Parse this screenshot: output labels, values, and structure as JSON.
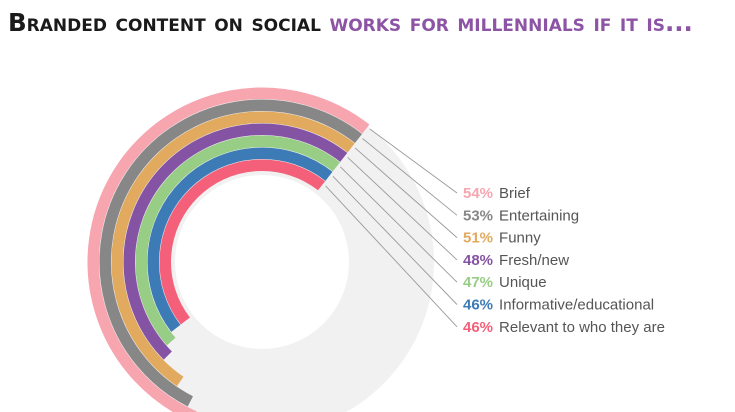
{
  "title": {
    "part1": "Branded content on social",
    "part2": "works for millennials if it is..."
  },
  "colors": {
    "title_dark": "#1a1a1a",
    "title_accent": "#8d53a5",
    "track": "#f1f1f1",
    "leader": "#9a9a9a"
  },
  "chart_data": {
    "type": "radial-bar",
    "title": "Branded content on social works for millennials if it is...",
    "unit": "%",
    "max": 100,
    "series": [
      {
        "label": "Brief",
        "value": 54,
        "display": "54%",
        "color": "#f7a6b0"
      },
      {
        "label": "Entertaining",
        "value": 53,
        "display": "53%",
        "color": "#878787"
      },
      {
        "label": "Funny",
        "value": 51,
        "display": "51%",
        "color": "#e2aa5e"
      },
      {
        "label": "Fresh/new",
        "value": 48,
        "display": "48%",
        "color": "#8553a4"
      },
      {
        "label": "Unique",
        "value": 47,
        "display": "47%",
        "color": "#97cd85"
      },
      {
        "label": "Informative/educational",
        "value": 46,
        "display": "46%",
        "color": "#3c7bb5"
      },
      {
        "label": "Relevant to who they are",
        "value": 46,
        "display": "46%",
        "color": "#f4607a"
      }
    ]
  }
}
